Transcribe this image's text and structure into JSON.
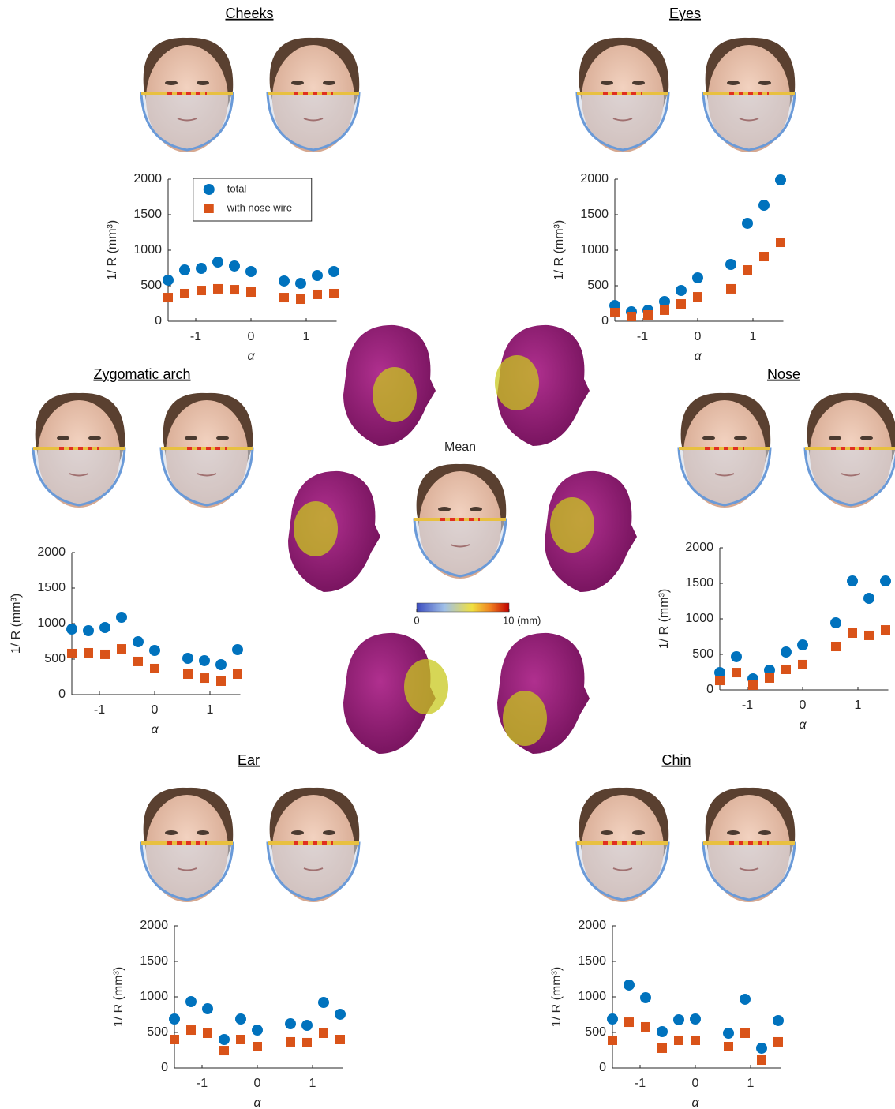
{
  "chart_data": [
    {
      "type": "scatter",
      "title": "Cheeks",
      "ylabel": "1/ R (mm³)",
      "xlabel": "α",
      "x": [
        -1.5,
        -1.2,
        -0.9,
        -0.6,
        -0.3,
        0,
        0.6,
        0.9,
        1.2,
        1.5
      ],
      "series": [
        {
          "name": "total",
          "color": "#0072bd",
          "marker": "circle",
          "values": [
            578,
            722,
            744,
            833,
            778,
            700,
            567,
            533,
            644,
            700
          ]
        },
        {
          "name": "with nose wire",
          "color": "#d95319",
          "marker": "square",
          "values": [
            333,
            389,
            433,
            456,
            444,
            411,
            333,
            311,
            378,
            389
          ]
        }
      ],
      "xlim": [
        -1.5,
        1.55
      ],
      "xticks": [
        -1,
        0,
        1
      ],
      "ylim": [
        0,
        2000
      ],
      "yticks": [
        0,
        500,
        1000,
        1500,
        2000
      ],
      "legend": "upper center"
    },
    {
      "type": "scatter",
      "title": "Eyes",
      "ylabel": "1/ R (mm³)",
      "xlabel": "α",
      "x": [
        -1.5,
        -1.2,
        -0.9,
        -0.6,
        -0.3,
        0,
        0.6,
        0.9,
        1.2,
        1.5
      ],
      "series": [
        {
          "color": "#0072bd",
          "marker": "circle",
          "values": [
            222,
            133,
            156,
            278,
            433,
            611,
            800,
            1378,
            1633,
            1989
          ]
        },
        {
          "color": "#d95319",
          "marker": "square",
          "values": [
            122,
            67,
            89,
            156,
            244,
            344,
            456,
            722,
            911,
            1111
          ]
        }
      ],
      "xlim": [
        -1.5,
        1.55
      ],
      "xticks": [
        -1,
        0,
        1
      ],
      "ylim": [
        0,
        2000
      ],
      "yticks": [
        0,
        500,
        1000,
        1500,
        2000
      ]
    },
    {
      "type": "scatter",
      "title": "Zygomatic arch",
      "ylabel": "1/ R (mm³)",
      "xlabel": "α",
      "x": [
        -1.5,
        -1.2,
        -0.9,
        -0.6,
        -0.3,
        0,
        0.6,
        0.9,
        1.2,
        1.5
      ],
      "series": [
        {
          "color": "#0072bd",
          "marker": "circle",
          "values": [
            922,
            900,
            944,
            1089,
            744,
            622,
            511,
            478,
            422,
            633
          ]
        },
        {
          "color": "#d95319",
          "marker": "square",
          "values": [
            578,
            589,
            567,
            644,
            467,
            367,
            289,
            233,
            189,
            289
          ]
        }
      ],
      "xlim": [
        -1.5,
        1.55
      ],
      "xticks": [
        -1,
        0,
        1
      ],
      "ylim": [
        0,
        2000
      ],
      "yticks": [
        0,
        500,
        1000,
        1500,
        2000
      ]
    },
    {
      "type": "scatter",
      "title": "Nose",
      "ylabel": "1/ R (mm³)",
      "xlabel": "α",
      "x": [
        -1.5,
        -1.2,
        -0.9,
        -0.6,
        -0.3,
        0,
        0.6,
        0.9,
        1.2,
        1.5
      ],
      "series": [
        {
          "color": "#0072bd",
          "marker": "circle",
          "values": [
            244,
            467,
            156,
            278,
            533,
            633,
            944,
            1533,
            1289,
            1533
          ]
        },
        {
          "color": "#d95319",
          "marker": "square",
          "values": [
            133,
            244,
            67,
            167,
            289,
            356,
            611,
            800,
            767,
            844
          ]
        }
      ],
      "xlim": [
        -1.5,
        1.55
      ],
      "xticks": [
        -1,
        0,
        1
      ],
      "ylim": [
        0,
        2000
      ],
      "yticks": [
        0,
        500,
        1000,
        1500,
        2000
      ]
    },
    {
      "type": "scatter",
      "title": "Ear",
      "ylabel": "1/ R (mm³)",
      "xlabel": "α",
      "x": [
        -1.5,
        -1.2,
        -0.9,
        -0.6,
        -0.3,
        0,
        0.6,
        0.9,
        1.2,
        1.5
      ],
      "series": [
        {
          "color": "#0072bd",
          "marker": "circle",
          "values": [
            689,
            933,
            833,
            400,
            689,
            533,
            622,
            600,
            922,
            756
          ]
        },
        {
          "color": "#d95319",
          "marker": "square",
          "values": [
            400,
            533,
            489,
            244,
            400,
            300,
            367,
            356,
            489,
            400
          ]
        }
      ],
      "xlim": [
        -1.5,
        1.55
      ],
      "xticks": [
        -1,
        0,
        1
      ],
      "ylim": [
        0,
        2000
      ],
      "yticks": [
        0,
        500,
        1000,
        1500,
        2000
      ]
    },
    {
      "type": "scatter",
      "title": "Chin",
      "ylabel": "1/ R (mm³)",
      "xlabel": "α",
      "x": [
        -1.5,
        -1.2,
        -0.9,
        -0.6,
        -0.3,
        0,
        0.6,
        0.9,
        1.2,
        1.5
      ],
      "series": [
        {
          "color": "#0072bd",
          "marker": "circle",
          "values": [
            689,
            1167,
            989,
            511,
            678,
            689,
            489,
            967,
            278,
            667
          ]
        },
        {
          "color": "#d95319",
          "marker": "square",
          "values": [
            389,
            644,
            578,
            278,
            389,
            389,
            300,
            489,
            111,
            367
          ]
        }
      ],
      "xlim": [
        -1.5,
        1.55
      ],
      "xticks": [
        -1,
        0,
        1
      ],
      "ylim": [
        0,
        2000
      ],
      "yticks": [
        0,
        500,
        1000,
        1500,
        2000
      ]
    }
  ],
  "center": {
    "title": "Mean",
    "colorbar": {
      "lim": [
        0,
        10
      ],
      "ticks": [
        0,
        {
          "value": 10,
          "label": "10 (mm)"
        }
      ]
    }
  }
}
